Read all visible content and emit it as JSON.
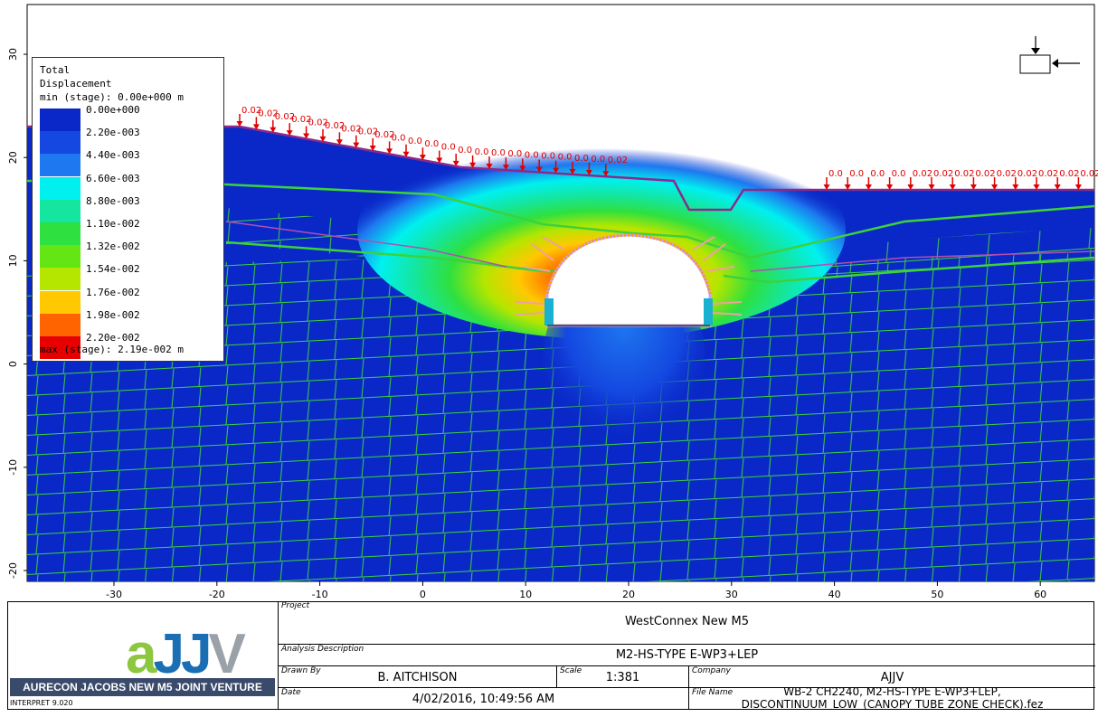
{
  "legend": {
    "title_line1": "Total",
    "title_line2": "Displacement",
    "min_line": "min (stage): 0.00e+000 m",
    "max_line": "max (stage): 2.19e-002 m",
    "entries": [
      {
        "label": "0.00e+000",
        "color": "#0a28c8"
      },
      {
        "label": "2.20e-003",
        "color": "#1448e0"
      },
      {
        "label": "4.40e-003",
        "color": "#1e78f0"
      },
      {
        "label": "6.60e-003",
        "color": "#00f0f0"
      },
      {
        "label": "8.80e-003",
        "color": "#14e6a0"
      },
      {
        "label": "1.10e-002",
        "color": "#2ee040"
      },
      {
        "label": "1.32e-002",
        "color": "#64e614"
      },
      {
        "label": "1.54e-002",
        "color": "#b4e600"
      },
      {
        "label": "1.76e-002",
        "color": "#ffc800"
      },
      {
        "label": "1.98e-002",
        "color": "#ff6400"
      },
      {
        "label": "2.20e-002",
        "color": "#e60000"
      }
    ]
  },
  "axes": {
    "x_ticks": [
      "-30",
      "-20",
      "-10",
      "0",
      "10",
      "20",
      "30",
      "40",
      "50",
      "60"
    ],
    "y_ticks": [
      "30",
      "20",
      "10",
      "0",
      "-10",
      "-20"
    ]
  },
  "load_labels": {
    "left": [
      "0.02",
      "0.02",
      "0.02",
      "0.02",
      "0.02",
      "0.02",
      "0.02",
      "0.02",
      "0.02",
      "0.0",
      "0.0",
      "0.0",
      "0.0",
      "0.0",
      "0.0",
      "0.0",
      "0.0",
      "0.0",
      "0.0",
      "0.0",
      "0.0",
      "0.0",
      "0.02"
    ],
    "right": [
      "0.0",
      "0.0",
      "0.0",
      "0.0",
      "0.02",
      "0.02",
      "0.02",
      "0.02",
      "0.02",
      "0.02",
      "0.02",
      "0.02",
      "0.02"
    ]
  },
  "colors": {
    "rock": "#0a28c8",
    "joints": "#3cd23c",
    "loads": "#e00000",
    "surface": "#8a2a8a"
  },
  "titleblock": {
    "project_caption": "Project",
    "project": "WestConnex New M5",
    "analysis_caption": "Analysis Description",
    "analysis": "M2-HS-TYPE E-WP3+LEP",
    "drawn_caption": "Drawn By",
    "drawn": "B. AITCHISON",
    "scale_caption": "Scale",
    "scale": "1:381",
    "company_caption": "Company",
    "company": "AJJV",
    "date_caption": "Date",
    "date": "4/02/2016, 10:49:56 AM",
    "file_caption": "File Name",
    "file_line1": "WB-2 CH2240, M2-HS-TYPE E-WP3+LEP,",
    "file_line2": "DISCONTINUUM_LOW_(CANOPY TUBE ZONE CHECK).fez",
    "logo_text": "aJJV",
    "logo_banner": "AURECON JACOBS NEW M5 JOINT VENTURE",
    "version": "INTERPRET 9.020"
  }
}
